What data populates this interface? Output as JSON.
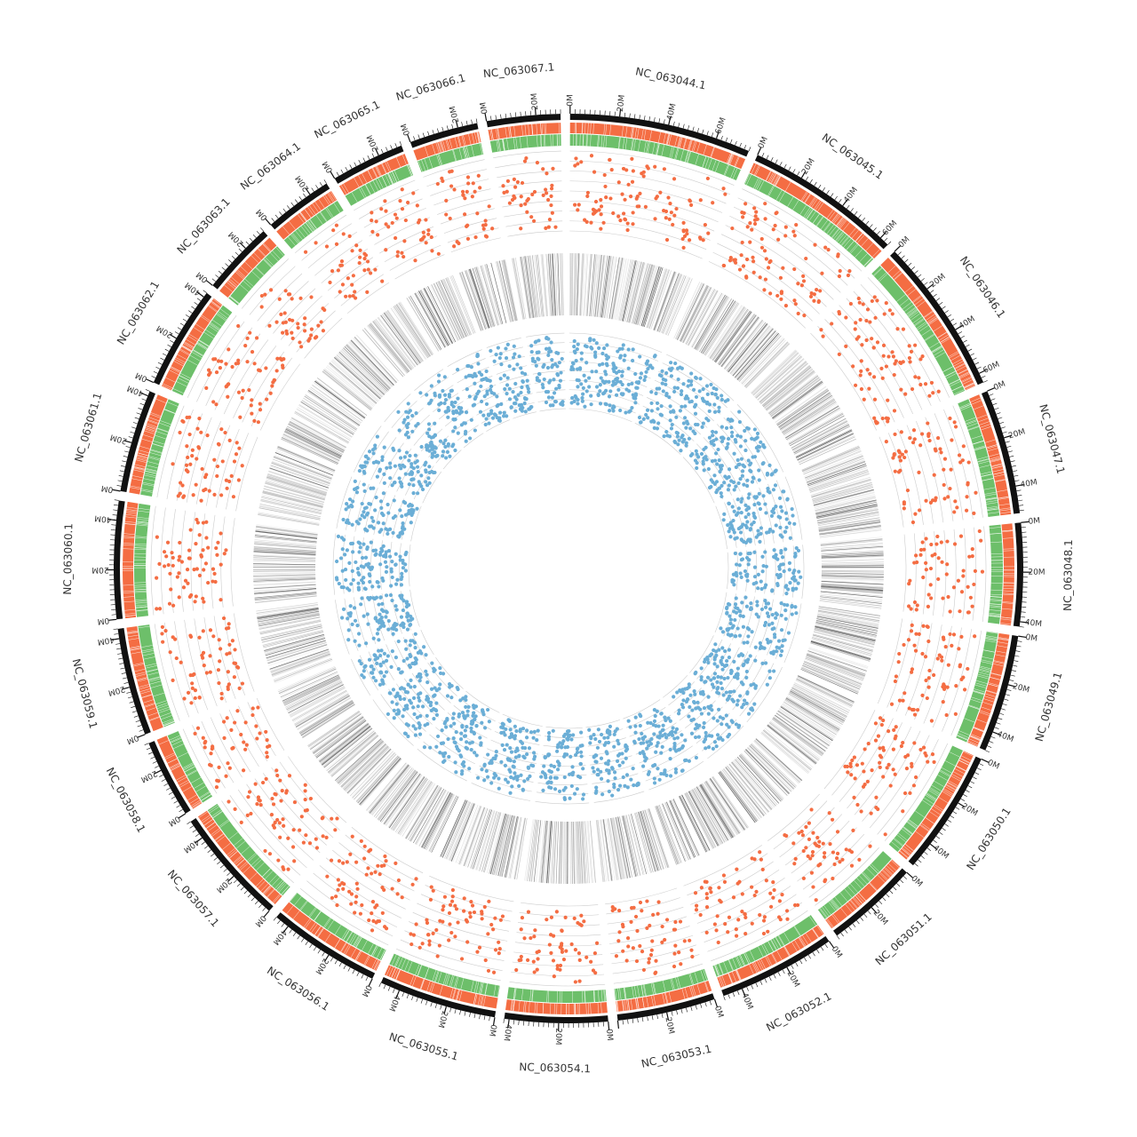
{
  "chart_data": {
    "type": "circos",
    "title": "",
    "tick_unit": "M",
    "chromosomes": [
      {
        "name": "NC_063044.1",
        "length_mb": 74,
        "ticks": [
          "0M",
          "20M",
          "40M",
          "60M"
        ]
      },
      {
        "name": "NC_063045.1",
        "length_mb": 64,
        "ticks": [
          "0M",
          "20M",
          "40M",
          "60M"
        ]
      },
      {
        "name": "NC_063046.1",
        "length_mb": 64,
        "ticks": [
          "0M",
          "20M",
          "40M",
          "60M"
        ]
      },
      {
        "name": "NC_063047.1",
        "length_mb": 51,
        "ticks": [
          "0M",
          "20M",
          "40M"
        ]
      },
      {
        "name": "NC_063048.1",
        "length_mb": 42,
        "ticks": [
          "0M",
          "20M",
          "40M"
        ]
      },
      {
        "name": "NC_063049.1",
        "length_mb": 48,
        "ticks": [
          "0M",
          "20M",
          "40M"
        ]
      },
      {
        "name": "NC_063050.1",
        "length_mb": 51,
        "ticks": [
          "0M",
          "20M",
          "40M"
        ]
      },
      {
        "name": "NC_063051.1",
        "length_mb": 38,
        "ticks": [
          "0M",
          "20M"
        ]
      },
      {
        "name": "NC_063052.1",
        "length_mb": 48,
        "ticks": [
          "0M",
          "20M",
          "40M"
        ]
      },
      {
        "name": "NC_063053.1",
        "length_mb": 40,
        "ticks": [
          "0M",
          "20M"
        ]
      },
      {
        "name": "NC_063054.1",
        "length_mb": 42,
        "ticks": [
          "0M",
          "20M",
          "40M"
        ]
      },
      {
        "name": "NC_063055.1",
        "length_mb": 48,
        "ticks": [
          "0M",
          "20M",
          "40M"
        ]
      },
      {
        "name": "NC_063056.1",
        "length_mb": 46,
        "ticks": [
          "0M",
          "20M",
          "40M"
        ]
      },
      {
        "name": "NC_063057.1",
        "length_mb": 48,
        "ticks": [
          "0M",
          "20M",
          "40M"
        ]
      },
      {
        "name": "NC_063058.1",
        "length_mb": 32,
        "ticks": [
          "0M",
          "20M"
        ]
      },
      {
        "name": "NC_063059.1",
        "length_mb": 44,
        "ticks": [
          "0M",
          "20M",
          "40M"
        ]
      },
      {
        "name": "NC_063060.1",
        "length_mb": 48,
        "ticks": [
          "0M",
          "20M",
          "40M"
        ]
      },
      {
        "name": "NC_063061.1",
        "length_mb": 42,
        "ticks": [
          "0M",
          "20M",
          "40M"
        ]
      },
      {
        "name": "NC_063062.1",
        "length_mb": 42,
        "ticks": [
          "0M",
          "20M",
          "40M"
        ]
      },
      {
        "name": "NC_063063.1",
        "length_mb": 30,
        "ticks": [
          "0M",
          "20M"
        ]
      },
      {
        "name": "NC_063064.1",
        "length_mb": 28,
        "ticks": [
          "0M",
          "20M"
        ]
      },
      {
        "name": "NC_063065.1",
        "length_mb": 30,
        "ticks": [
          "0M",
          "20M"
        ]
      },
      {
        "name": "NC_063066.1",
        "length_mb": 28,
        "ticks": [
          "0M",
          "20M"
        ]
      },
      {
        "name": "NC_063067.1",
        "length_mb": 30,
        "ticks": [
          "0M",
          "20M"
        ]
      }
    ],
    "tracks": [
      {
        "kind": "ideogram",
        "color": "#111111"
      },
      {
        "kind": "density-heatmap",
        "color": "#f46d43"
      },
      {
        "kind": "density-heatmap",
        "color": "#6dbf6a"
      },
      {
        "kind": "scatter",
        "color": "#f46d43"
      },
      {
        "kind": "line-density",
        "color": "#444444"
      },
      {
        "kind": "scatter",
        "color": "#6baed6"
      }
    ]
  }
}
